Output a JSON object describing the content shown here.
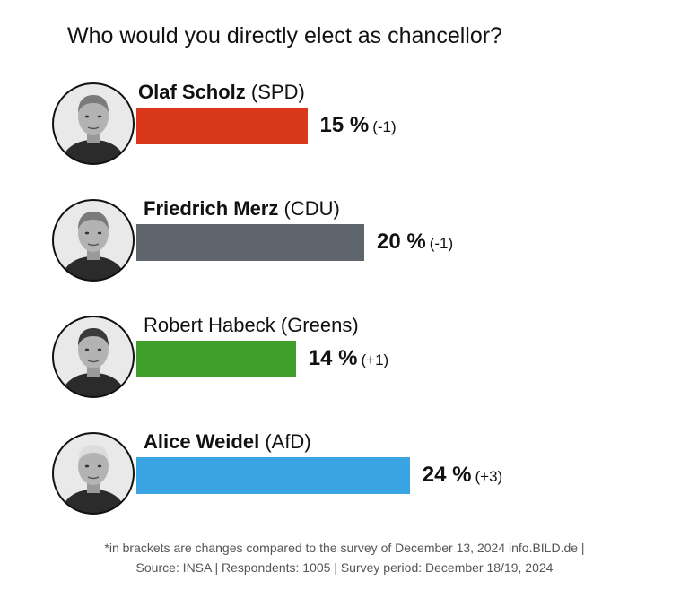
{
  "chart_data": {
    "type": "bar",
    "orientation": "horizontal",
    "title": "Who would you directly elect as chancellor?",
    "categories": [
      "Olaf Scholz",
      "Friedrich Merz",
      "Robert Habeck",
      "Alice Weidel"
    ],
    "parties": [
      "(SPD)",
      "(CDU)",
      "(Greens)",
      "(AfD)"
    ],
    "values": [
      15,
      20,
      14,
      24
    ],
    "value_labels": [
      "15 %",
      "20 %",
      "14 %",
      "24 %"
    ],
    "changes": [
      "(-1)",
      "(-1)",
      "(+1)",
      "(+3)"
    ],
    "colors": [
      "#d9391a",
      "#5f656c",
      "#3f9f2b",
      "#3aa3e2"
    ],
    "name_bold": [
      true,
      true,
      false,
      true
    ],
    "xlim": [
      0,
      24
    ],
    "grid": false,
    "legend": "none"
  },
  "footer": {
    "line1": "*in brackets are changes compared to the survey of December 13, 2024 info.BILD.de |",
    "line2": "Source: INSA | Respondents: 1005 | Survey period: December 18/19, 2024"
  }
}
